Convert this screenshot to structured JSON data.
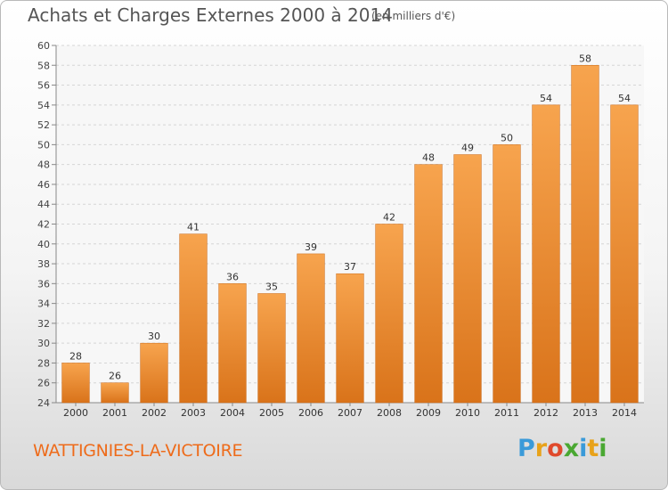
{
  "chart_data": {
    "type": "bar",
    "title": "Achats et Charges Externes 2000 à 2014",
    "subtitle": "(en milliers d'€)",
    "categories": [
      "2000",
      "2001",
      "2002",
      "2003",
      "2004",
      "2005",
      "2006",
      "2007",
      "2008",
      "2009",
      "2010",
      "2011",
      "2012",
      "2013",
      "2014"
    ],
    "values": [
      28,
      26,
      30,
      41,
      36,
      35,
      39,
      37,
      42,
      48,
      49,
      50,
      54,
      58,
      54
    ],
    "data_labels": [
      "28",
      "26",
      "30",
      "41",
      "36",
      "35",
      "39",
      "37",
      "42",
      "48",
      "49",
      "50",
      "54",
      "58",
      "54"
    ],
    "ylim": [
      24,
      60
    ],
    "yticks": [
      24,
      26,
      28,
      30,
      32,
      34,
      36,
      38,
      40,
      42,
      44,
      46,
      48,
      50,
      52,
      54,
      56,
      58,
      60
    ],
    "xlabel": "",
    "ylabel": "",
    "grid": true,
    "bar_color": "#f0923a"
  },
  "footer": {
    "town": "WATTIGNIES-LA-VICTOIRE"
  },
  "logo": {
    "text": "Proxiti",
    "letters": [
      "P",
      "r",
      "o",
      "x",
      "i",
      "t",
      "i"
    ],
    "colors": [
      "#3a9ad9",
      "#e8a21a",
      "#e04a2c",
      "#4aa832",
      "#3a9ad9",
      "#e8a21a",
      "#4aa832"
    ]
  }
}
